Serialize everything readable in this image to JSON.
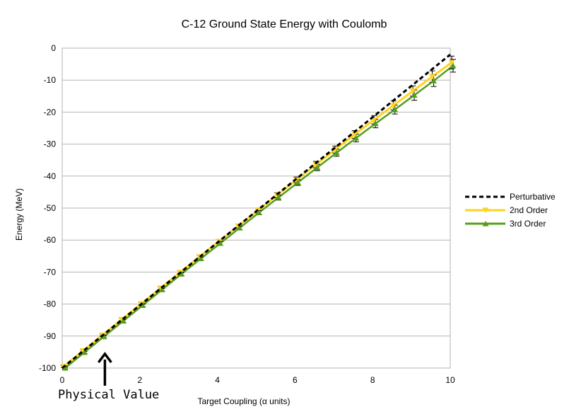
{
  "chart_data": {
    "type": "line",
    "title": "C-12 Ground State Energy with Coulomb",
    "xlabel": "Target Coupling (α units)",
    "ylabel": "Energy (MeV)",
    "xlim": [
      0,
      10
    ],
    "ylim": [
      -100,
      0
    ],
    "xticks": [
      "0",
      "2",
      "4",
      "6",
      "8",
      "10"
    ],
    "yticks": [
      "0",
      "-10",
      "-20",
      "-30",
      "-40",
      "-50",
      "-60",
      "-70",
      "-80",
      "-90",
      "-100"
    ],
    "grid": "horizontal",
    "legend_position": "right",
    "x": [
      0,
      0.5,
      1,
      1.5,
      2,
      2.5,
      3,
      3.5,
      4,
      4.5,
      5,
      5.5,
      6,
      6.5,
      7,
      7.5,
      8,
      8.5,
      9,
      9.5,
      10
    ],
    "series": [
      {
        "name": "Perturbative",
        "color": "#000000",
        "style": "dashed",
        "values": [
          -100,
          -95.1,
          -90.2,
          -85.3,
          -80.4,
          -75.5,
          -70.6,
          -65.7,
          -60.8,
          -55.9,
          -51.0,
          -46.1,
          -41.2,
          -36.3,
          -31.4,
          -26.5,
          -21.6,
          -16.7,
          -11.8,
          -6.9,
          -2.0
        ]
      },
      {
        "name": "2nd Order",
        "color": "#ffd320",
        "marker": "triangle-down",
        "values": [
          -99.5,
          -94.6,
          -89.7,
          -84.8,
          -79.9,
          -75.0,
          -70.1,
          -65.2,
          -60.4,
          -55.6,
          -50.8,
          -46.0,
          -41.2,
          -36.4,
          -31.7,
          -27.0,
          -22.4,
          -17.9,
          -13.4,
          -8.9,
          -4.5
        ],
        "error": [
          0.3,
          0.3,
          0.3,
          0.4,
          0.4,
          0.4,
          0.5,
          0.5,
          0.6,
          0.6,
          0.7,
          0.8,
          0.9,
          1.0,
          1.1,
          1.2,
          1.3,
          1.4,
          1.6,
          1.8,
          2.0
        ]
      },
      {
        "name": "3rd Order",
        "color": "#579d1c",
        "marker": "triangle-up",
        "values": [
          -100,
          -95.1,
          -90.2,
          -85.3,
          -80.4,
          -75.5,
          -70.6,
          -65.8,
          -61.0,
          -56.2,
          -51.4,
          -46.7,
          -42.0,
          -37.3,
          -32.7,
          -28.1,
          -23.6,
          -19.2,
          -14.7,
          -10.2,
          -5.5
        ],
        "error": [
          0.3,
          0.3,
          0.3,
          0.4,
          0.4,
          0.4,
          0.5,
          0.5,
          0.6,
          0.6,
          0.7,
          0.8,
          0.9,
          1.0,
          1.1,
          1.2,
          1.3,
          1.4,
          1.6,
          1.8,
          2.0
        ]
      }
    ],
    "annotation": {
      "text": "Physical Value",
      "x": 1.1
    }
  }
}
